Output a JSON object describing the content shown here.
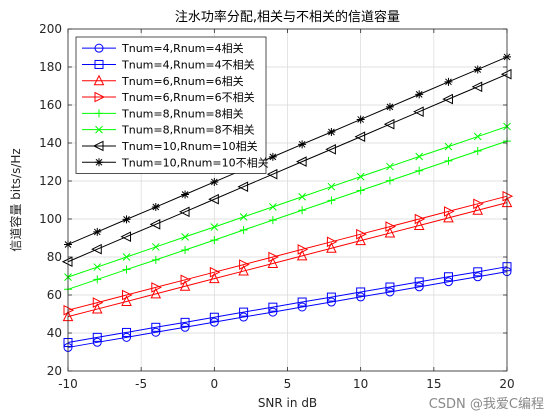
{
  "chart_data": {
    "type": "line",
    "title": "注水功率分配,相关与不相关的信道容量",
    "xlabel": "SNR in dB",
    "ylabel": "信道容量 bits/s/Hz",
    "xlim": [
      -10,
      20
    ],
    "ylim": [
      20,
      200
    ],
    "xticks": [
      -10,
      -5,
      0,
      5,
      10,
      15,
      20
    ],
    "yticks": [
      20,
      40,
      60,
      80,
      100,
      120,
      140,
      160,
      180,
      200
    ],
    "grid": true,
    "legend_position": "top-left",
    "x": [
      -10,
      -8,
      -6,
      -4,
      -2,
      0,
      2,
      4,
      6,
      8,
      10,
      12,
      14,
      16,
      18,
      20
    ],
    "series": [
      {
        "name": "Tnum=4,Rnum=4相关",
        "color": "#0000ff",
        "marker": "circle",
        "values": [
          32.4,
          35.1,
          37.7,
          40.4,
          43.0,
          45.7,
          48.4,
          51.0,
          53.7,
          56.3,
          59.0,
          61.6,
          64.3,
          67.0,
          69.6,
          72.3
        ]
      },
      {
        "name": "Tnum=4,Rnum=4不相关",
        "color": "#0000ff",
        "marker": "square",
        "values": [
          35.0,
          37.7,
          40.3,
          43.0,
          45.6,
          48.3,
          51.0,
          53.6,
          56.3,
          58.9,
          61.6,
          64.2,
          66.9,
          69.6,
          72.2,
          74.9
        ]
      },
      {
        "name": "Tnum=6,Rnum=6相关",
        "color": "#ff0000",
        "marker": "triangle-up",
        "values": [
          48.6,
          52.6,
          56.6,
          60.6,
          64.6,
          68.6,
          72.6,
          76.6,
          80.6,
          84.6,
          88.6,
          92.6,
          96.6,
          100.6,
          104.6,
          108.6
        ]
      },
      {
        "name": "Tnum=6,Rnum=6不相关",
        "color": "#ff0000",
        "marker": "triangle-right",
        "values": [
          52.0,
          56.0,
          60.0,
          64.0,
          68.0,
          72.0,
          76.0,
          80.0,
          84.0,
          88.0,
          92.0,
          96.0,
          100.0,
          104.0,
          108.0,
          112.0
        ]
      },
      {
        "name": "Tnum=8,Rnum=8相关",
        "color": "#00ff00",
        "marker": "plus",
        "values": [
          63.0,
          68.2,
          73.4,
          78.5,
          83.7,
          88.9,
          94.2,
          99.4,
          104.6,
          109.8,
          115.0,
          120.2,
          125.4,
          130.6,
          135.8,
          141.0
        ]
      },
      {
        "name": "Tnum=8,Rnum=8不相关",
        "color": "#00ff00",
        "marker": "x",
        "values": [
          69.4,
          74.7,
          80.0,
          85.3,
          90.6,
          95.8,
          101.1,
          106.4,
          111.7,
          117.0,
          122.3,
          127.6,
          132.9,
          138.1,
          143.4,
          148.7
        ]
      },
      {
        "name": "Tnum=10,Rnum=10相关",
        "color": "#000000",
        "marker": "triangle-left",
        "values": [
          77.5,
          84.1,
          90.7,
          97.2,
          103.8,
          110.4,
          117.0,
          123.6,
          130.2,
          136.7,
          143.3,
          149.9,
          156.5,
          163.1,
          169.6,
          176.2
        ]
      },
      {
        "name": "Tnum=10,Rnum=10不相关",
        "color": "#000000",
        "marker": "asterisk",
        "values": [
          86.6,
          93.2,
          99.8,
          106.3,
          112.9,
          119.5,
          126.1,
          132.7,
          139.3,
          145.8,
          152.4,
          159.0,
          165.6,
          172.2,
          178.7,
          185.3
        ]
      }
    ]
  },
  "watermark": "CSDN @我爱C编程"
}
